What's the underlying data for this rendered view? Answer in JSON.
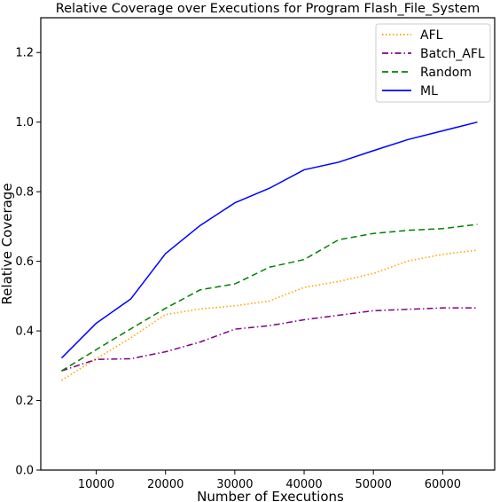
{
  "chart_data": {
    "type": "line",
    "title": "Relative Coverage over Executions for Program Flash_File_System",
    "xlabel": "Number of Executions",
    "ylabel": "Relative Coverage",
    "xlim": [
      2000,
      67500
    ],
    "ylim": [
      0.0,
      1.3
    ],
    "xticks": [
      10000,
      20000,
      30000,
      40000,
      50000,
      60000
    ],
    "yticks": [
      0.0,
      0.2,
      0.4,
      0.6,
      0.8,
      1.0,
      1.2
    ],
    "xtick_labels": [
      "10000",
      "20000",
      "30000",
      "40000",
      "50000",
      "60000"
    ],
    "ytick_labels": [
      "0.0",
      "0.2",
      "0.4",
      "0.6",
      "0.8",
      "1.0",
      "1.2"
    ],
    "grid": false,
    "legend_position": "top-right",
    "x": [
      5000,
      10000,
      15000,
      20000,
      25000,
      30000,
      35000,
      40000,
      45000,
      50000,
      55000,
      60000,
      65000
    ],
    "series": [
      {
        "name": "AFL",
        "color": "#ffa500",
        "style": "dotted",
        "values": [
          0.258,
          0.32,
          0.38,
          0.447,
          0.463,
          0.472,
          0.486,
          0.525,
          0.542,
          0.565,
          0.601,
          0.62,
          0.632
        ]
      },
      {
        "name": "Batch_AFL",
        "color": "#800080",
        "style": "dashdot",
        "values": [
          0.285,
          0.318,
          0.32,
          0.34,
          0.368,
          0.405,
          0.415,
          0.432,
          0.445,
          0.458,
          0.462,
          0.466,
          0.466
        ]
      },
      {
        "name": "Random",
        "color": "#008000",
        "style": "dashed",
        "values": [
          0.285,
          0.346,
          0.406,
          0.465,
          0.518,
          0.535,
          0.583,
          0.605,
          0.662,
          0.68,
          0.689,
          0.694,
          0.706
        ]
      },
      {
        "name": "ML",
        "color": "#0000ff",
        "style": "solid",
        "values": [
          0.322,
          0.422,
          0.492,
          0.622,
          0.703,
          0.768,
          0.81,
          0.863,
          0.885,
          0.918,
          0.95,
          0.975,
          1.0
        ]
      }
    ]
  }
}
